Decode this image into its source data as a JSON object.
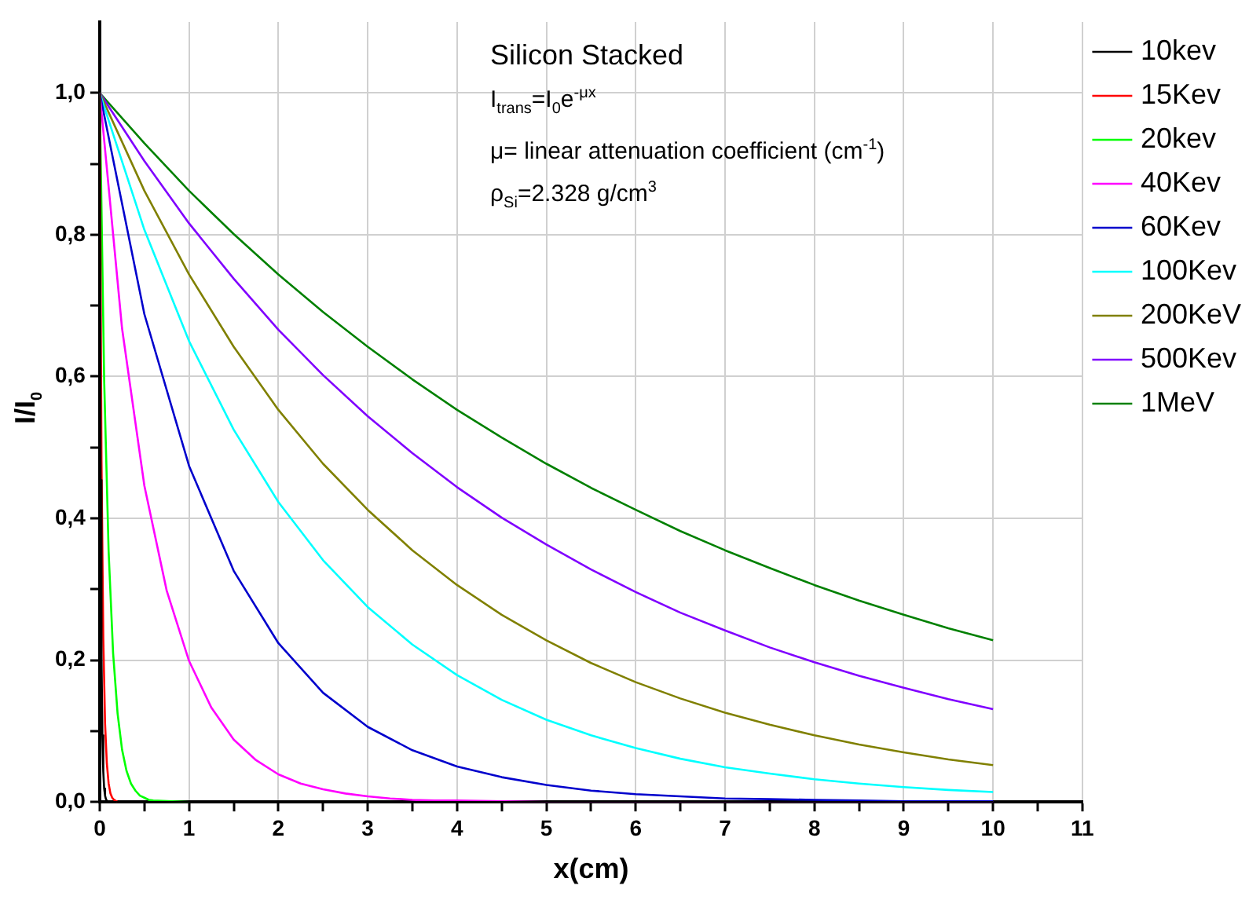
{
  "chart_data": {
    "type": "line",
    "xlabel": "x(cm)",
    "ylabel": "I/I$_{0}$",
    "annotations": [
      "Silicon Stacked",
      "I$_{trans}$=I$_{0}$e$^{-μx}$",
      "μ= linear attenuation coefficient (cm$^{-1}$)",
      "ρ$_{Si}$=2.328 g/cm$^{3}$"
    ],
    "xlim": [
      0,
      11
    ],
    "ylim": [
      0,
      1.1
    ],
    "xticks": [
      0,
      {
        "value": 0.5,
        "label": null
      },
      1,
      {
        "value": 1.5,
        "label": null
      },
      2,
      {
        "value": 2.5,
        "label": null
      },
      3,
      {
        "value": 3.5,
        "label": null
      },
      4,
      {
        "value": 4.5,
        "label": null
      },
      5,
      {
        "value": 5.5,
        "label": null
      },
      6,
      {
        "value": 6.5,
        "label": null
      },
      7,
      {
        "value": 7.5,
        "label": null
      },
      8,
      {
        "value": 8.5,
        "label": null
      },
      9,
      {
        "value": 9.5,
        "label": null
      },
      10,
      {
        "value": 10.5,
        "label": null
      },
      11
    ],
    "yticks": [
      {
        "value": 0,
        "label": "0,0"
      },
      {
        "value": 0.1,
        "label": null
      },
      {
        "value": 0.2,
        "label": "0,2"
      },
      {
        "value": 0.3,
        "label": null
      },
      {
        "value": 0.4,
        "label": "0,4"
      },
      {
        "value": 0.5,
        "label": null
      },
      {
        "value": 0.6,
        "label": "0,6"
      },
      {
        "value": 0.7,
        "label": null
      },
      {
        "value": 0.8,
        "label": "0,8"
      },
      {
        "value": 0.9,
        "label": null
      },
      {
        "value": 1,
        "label": "1,0"
      }
    ],
    "grid": true,
    "legend": "right",
    "marker": "none",
    "line_style": "solid",
    "series": [
      {
        "name": "10kev",
        "color": "#000000",
        "x": [
          0,
          0.01,
          0.02,
          0.03,
          0.04,
          0.05,
          0.06,
          0.07,
          0.08,
          0.1,
          10
        ],
        "values": [
          1,
          0.454,
          0.206,
          0.094,
          0.043,
          0.019,
          0.009,
          0.004,
          0.002,
          0,
          0
        ]
      },
      {
        "name": "15Kev",
        "color": "#ff0000",
        "x": [
          0,
          0.02,
          0.04,
          0.06,
          0.08,
          0.1,
          0.12,
          0.14,
          0.16,
          0.2
        ],
        "values": [
          1,
          0.481,
          0.231,
          0.111,
          0.054,
          0.026,
          0.012,
          0.006,
          0.003,
          0
        ]
      },
      {
        "name": "20kev",
        "color": "#00ff00",
        "x": [
          0,
          0.05,
          0.1,
          0.15,
          0.2,
          0.25,
          0.3,
          0.35,
          0.4,
          0.45,
          0.5,
          0.55,
          0.6,
          1
        ],
        "values": [
          1,
          0.595,
          0.353,
          0.21,
          0.125,
          0.074,
          0.044,
          0.026,
          0.016,
          0.009,
          0.006,
          0.003,
          0.002,
          0
        ]
      },
      {
        "name": "40Kev",
        "color": "#ff00ff",
        "x": [
          0,
          0.25,
          0.5,
          0.75,
          1,
          1.25,
          1.5,
          1.75,
          2,
          2.25,
          2.5,
          2.75,
          3,
          3.25,
          3.5,
          3.75,
          4,
          4.5,
          5,
          10
        ],
        "values": [
          1,
          0.668,
          0.446,
          0.298,
          0.199,
          0.133,
          0.088,
          0.059,
          0.039,
          0.026,
          0.018,
          0.012,
          0.008,
          0.005,
          0.003,
          0.002,
          0.002,
          0.001,
          0,
          0
        ]
      },
      {
        "name": "60Kev",
        "color": "#0000cc",
        "x": [
          0,
          0.5,
          1,
          1.5,
          2,
          2.5,
          3,
          3.5,
          4,
          4.5,
          5,
          5.5,
          6,
          6.5,
          7,
          7.5,
          8,
          8.5,
          9,
          9.5,
          10
        ],
        "values": [
          1,
          0.688,
          0.474,
          0.326,
          0.224,
          0.154,
          0.106,
          0.073,
          0.05,
          0.035,
          0.024,
          0.016,
          0.011,
          0.008,
          0.005,
          0.004,
          0.003,
          0.002,
          0.001,
          0.001,
          0.001
        ]
      },
      {
        "name": "100Kev",
        "color": "#00ffff",
        "x": [
          0,
          0.5,
          1,
          1.5,
          2,
          2.5,
          3,
          3.5,
          4,
          4.5,
          5,
          5.5,
          6,
          6.5,
          7,
          7.5,
          8,
          8.5,
          9,
          9.5,
          10
        ],
        "values": [
          1,
          0.807,
          0.65,
          0.525,
          0.423,
          0.341,
          0.275,
          0.222,
          0.179,
          0.144,
          0.116,
          0.094,
          0.076,
          0.061,
          0.049,
          0.04,
          0.032,
          0.026,
          0.021,
          0.017,
          0.014
        ]
      },
      {
        "name": "200KeV",
        "color": "#808000",
        "x": [
          0,
          0.5,
          1,
          1.5,
          2,
          2.5,
          3,
          3.5,
          4,
          4.5,
          5,
          5.5,
          6,
          6.5,
          7,
          7.5,
          8,
          8.5,
          9,
          9.5,
          10
        ],
        "values": [
          1,
          0.862,
          0.744,
          0.642,
          0.553,
          0.477,
          0.412,
          0.355,
          0.306,
          0.264,
          0.228,
          0.196,
          0.169,
          0.146,
          0.126,
          0.109,
          0.094,
          0.081,
          0.07,
          0.06,
          0.052
        ]
      },
      {
        "name": "500Kev",
        "color": "#8000ff",
        "x": [
          0,
          0.5,
          1,
          1.5,
          2,
          2.5,
          3,
          3.5,
          4,
          4.5,
          5,
          5.5,
          6,
          6.5,
          7,
          7.5,
          8,
          8.5,
          9,
          9.5,
          10
        ],
        "values": [
          1,
          0.904,
          0.816,
          0.738,
          0.666,
          0.602,
          0.544,
          0.492,
          0.444,
          0.401,
          0.363,
          0.328,
          0.296,
          0.267,
          0.242,
          0.218,
          0.197,
          0.178,
          0.161,
          0.145,
          0.131
        ]
      },
      {
        "name": "1MeV",
        "color": "#008000",
        "x": [
          0,
          0.5,
          1,
          1.5,
          2,
          2.5,
          3,
          3.5,
          4,
          4.5,
          5,
          5.5,
          6,
          6.5,
          7,
          7.5,
          8,
          8.5,
          9,
          9.5,
          10
        ],
        "values": [
          1,
          0.929,
          0.862,
          0.801,
          0.744,
          0.691,
          0.642,
          0.596,
          0.553,
          0.514,
          0.477,
          0.443,
          0.412,
          0.382,
          0.355,
          0.33,
          0.306,
          0.284,
          0.264,
          0.245,
          0.228
        ]
      }
    ]
  }
}
